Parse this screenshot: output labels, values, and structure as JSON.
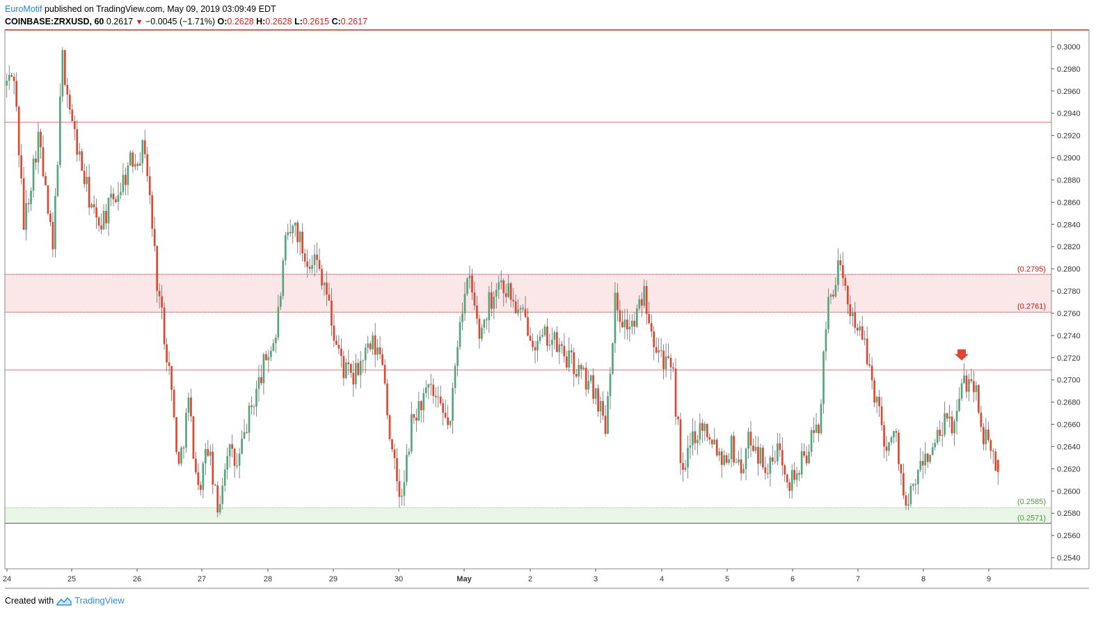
{
  "header": {
    "author": "EuroMotif",
    "published_text": "published on TradingView.com, May 09, 2019 03:09:49 EDT",
    "symbol": "COINBASE:ZRXUSD, 60",
    "last": "0.2617",
    "change": "−0.0045 (−1.71%)",
    "o_label": "O:",
    "o_value": "0.2628",
    "h_label": "H:",
    "h_value": "0.2628",
    "l_label": "L:",
    "l_value": "0.2615",
    "c_label": "C:",
    "c_value": "0.2617"
  },
  "footer": {
    "created_with": "Created with",
    "brand": "TradingView"
  },
  "colors": {
    "up": "#53a67b",
    "down": "#e0452d",
    "wick": "#666666",
    "resistance_line": "#e07a7a",
    "resistance_zone": "#fbe7e7",
    "support_zone": "#e9f5e6",
    "resistance_label": "#b02020",
    "support_label": "#4f9a3f",
    "frame": "#8a8a8a"
  },
  "chart_data": {
    "type": "candlestick",
    "title": "",
    "x_axis_labels": [
      "24",
      "25",
      "26",
      "27",
      "28",
      "29",
      "30",
      "May",
      "2",
      "3",
      "4",
      "5",
      "6",
      "7",
      "8",
      "9"
    ],
    "y_ticks": [
      "0.3000",
      "0.2980",
      "0.2960",
      "0.2940",
      "0.2920",
      "0.2900",
      "0.2880",
      "0.2860",
      "0.2840",
      "0.2820",
      "0.2800",
      "0.2780",
      "0.2760",
      "0.2740",
      "0.2720",
      "0.2700",
      "0.2680",
      "0.2660",
      "0.2640",
      "0.2620",
      "0.2600",
      "0.2580",
      "0.2560",
      "0.2540"
    ],
    "ylim": [
      0.253,
      0.3015
    ],
    "horizontal_lines": [
      0.2932,
      0.2709
    ],
    "resistance_zone": {
      "top": 0.2795,
      "bottom": 0.2761,
      "top_label": "(0.2795)",
      "bottom_label": "(0.2761)"
    },
    "support_zone": {
      "top": 0.2585,
      "bottom": 0.2571,
      "top_label": "(0.2585)",
      "bottom_label": "(0.2571)"
    },
    "marker": {
      "type": "down-arrow",
      "date": "May 8",
      "price": 0.272
    },
    "last_close": 0.2617,
    "price_path": [
      [
        0,
        0.2965
      ],
      [
        4,
        0.2975
      ],
      [
        8,
        0.284
      ],
      [
        14,
        0.292
      ],
      [
        20,
        0.2815
      ],
      [
        24,
        0.299
      ],
      [
        28,
        0.293
      ],
      [
        33,
        0.288
      ],
      [
        38,
        0.284
      ],
      [
        42,
        0.285
      ],
      [
        47,
        0.287
      ],
      [
        52,
        0.2895
      ],
      [
        58,
        0.291
      ],
      [
        63,
        0.279
      ],
      [
        68,
        0.271
      ],
      [
        72,
        0.262
      ],
      [
        76,
        0.268
      ],
      [
        80,
        0.26
      ],
      [
        84,
        0.264
      ],
      [
        88,
        0.258
      ],
      [
        92,
        0.264
      ],
      [
        96,
        0.262
      ],
      [
        100,
        0.266
      ],
      [
        104,
        0.269
      ],
      [
        108,
        0.272
      ],
      [
        112,
        0.274
      ],
      [
        116,
        0.282
      ],
      [
        120,
        0.284
      ],
      [
        124,
        0.281
      ],
      [
        128,
        0.281
      ],
      [
        132,
        0.279
      ],
      [
        136,
        0.274
      ],
      [
        140,
        0.271
      ],
      [
        144,
        0.27
      ],
      [
        148,
        0.272
      ],
      [
        152,
        0.273
      ],
      [
        156,
        0.272
      ],
      [
        160,
        0.263
      ],
      [
        164,
        0.259
      ],
      [
        168,
        0.266
      ],
      [
        172,
        0.268
      ],
      [
        176,
        0.269
      ],
      [
        180,
        0.267
      ],
      [
        184,
        0.266
      ],
      [
        188,
        0.276
      ],
      [
        192,
        0.279
      ],
      [
        196,
        0.274
      ],
      [
        200,
        0.277
      ],
      [
        204,
        0.279
      ],
      [
        208,
        0.278
      ],
      [
        212,
        0.276
      ],
      [
        216,
        0.275
      ],
      [
        220,
        0.273
      ],
      [
        224,
        0.274
      ],
      [
        228,
        0.273
      ],
      [
        232,
        0.272
      ],
      [
        236,
        0.271
      ],
      [
        240,
        0.27
      ],
      [
        244,
        0.269
      ],
      [
        248,
        0.266
      ],
      [
        252,
        0.277
      ],
      [
        256,
        0.275
      ],
      [
        260,
        0.275
      ],
      [
        264,
        0.278
      ],
      [
        268,
        0.274
      ],
      [
        272,
        0.272
      ],
      [
        276,
        0.27
      ],
      [
        280,
        0.261
      ],
      [
        284,
        0.265
      ],
      [
        288,
        0.266
      ],
      [
        292,
        0.265
      ],
      [
        296,
        0.263
      ],
      [
        300,
        0.264
      ],
      [
        304,
        0.262
      ],
      [
        308,
        0.265
      ],
      [
        312,
        0.263
      ],
      [
        316,
        0.262
      ],
      [
        320,
        0.264
      ],
      [
        324,
        0.261
      ],
      [
        328,
        0.262
      ],
      [
        332,
        0.264
      ],
      [
        336,
        0.266
      ],
      [
        340,
        0.277
      ],
      [
        344,
        0.28
      ],
      [
        348,
        0.277
      ],
      [
        352,
        0.275
      ],
      [
        356,
        0.272
      ],
      [
        360,
        0.268
      ],
      [
        364,
        0.264
      ],
      [
        368,
        0.265
      ],
      [
        372,
        0.258
      ],
      [
        376,
        0.261
      ],
      [
        380,
        0.263
      ],
      [
        384,
        0.264
      ],
      [
        388,
        0.266
      ],
      [
        392,
        0.266
      ],
      [
        396,
        0.27
      ],
      [
        400,
        0.27
      ],
      [
        404,
        0.265
      ],
      [
        408,
        0.263
      ],
      [
        410,
        0.2617
      ]
    ],
    "total_bars": 410
  }
}
